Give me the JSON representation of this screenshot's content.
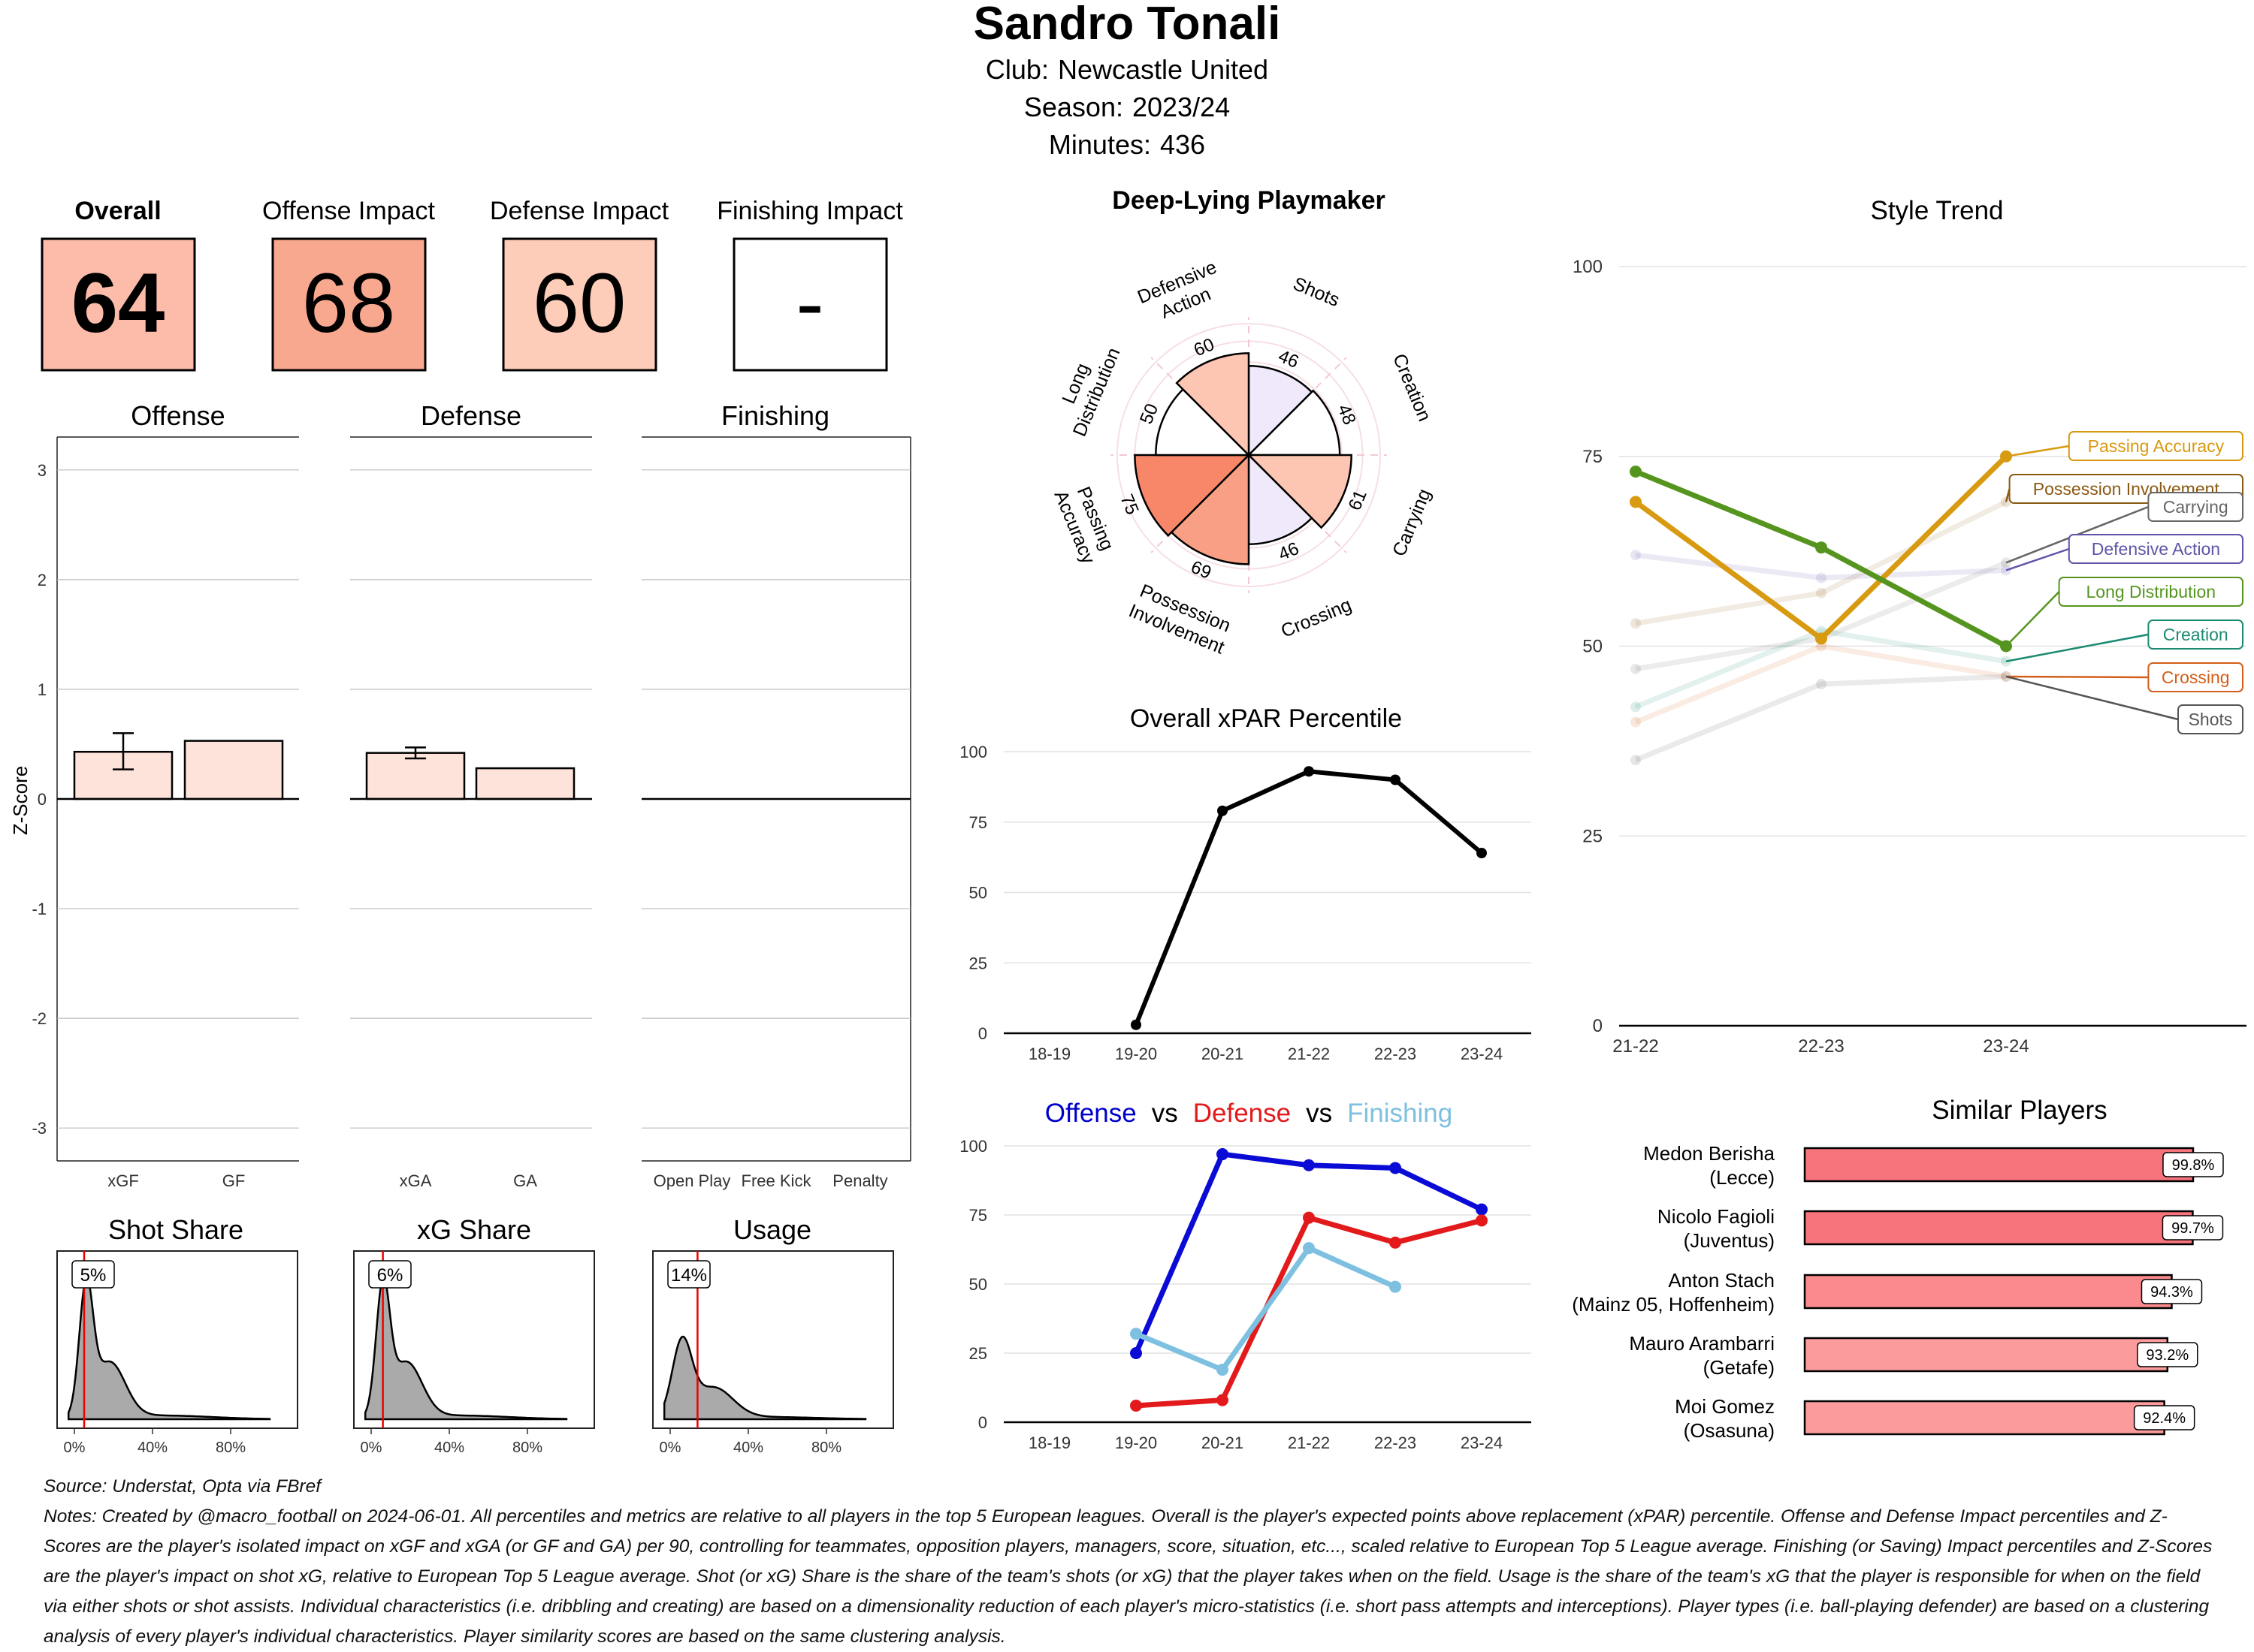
{
  "header": {
    "player_name": "Sandro Tonali",
    "club_label": "Club:",
    "club": "Newcastle United",
    "season_label": "Season:",
    "season": "2023/24",
    "minutes_label": "Minutes:",
    "minutes": "436"
  },
  "impact_boxes": [
    {
      "label": "Overall",
      "value": "64",
      "color": "#fcbca9"
    },
    {
      "label": "Offense Impact",
      "value": "68",
      "color": "#f9a890"
    },
    {
      "label": "Defense Impact",
      "value": "60",
      "color": "#fdcdb9"
    },
    {
      "label": "Finishing Impact",
      "value": "-",
      "color": "#ffffff"
    }
  ],
  "footer": {
    "source": "Source: Understat, Opta via FBref",
    "notes": "Notes: Created by @macro_football on 2024-06-01. All percentiles and metrics are relative to all players in the top 5 European leagues. Overall is the player's expected points above replacement (xPAR) percentile. Offense and Defense Impact percentiles and Z-Scores are the player's isolated impact on xGF and xGA (or GF and GA) per 90, controlling for teammates, opposition players, managers, score, situation, etc..., scaled relative to European Top 5 League average. Finishing (or Saving) Impact percentiles and Z-Scores are the player's impact on shot xG, relative to European Top 5 League average. Shot (or xG) Share is the share of the team's shots (or xG) that the player takes when on the field. Usage is the share of the team's xG that the player is responsible for when on the field via either shots or shot assists. Individual characteristics (i.e. dribbling and creating) are based on a dimensionality reduction of each player's micro-statistics (i.e. short pass attempts and interceptions). Player types (i.e. ball-playing defender) are based on a clustering analysis of every player's individual characteristics. Player similarity scores are based on the same clustering analysis."
  },
  "chart_data": [
    {
      "id": "zscore",
      "type": "bar",
      "ylabel": "Z-Score",
      "ylim": [
        -3.3,
        3.3
      ],
      "yticks": [
        -3,
        -2,
        -1,
        0,
        1,
        2,
        3
      ],
      "panels": [
        {
          "title": "Offense",
          "categories": [
            "xGF",
            "GF"
          ],
          "values": [
            0.43,
            0.53
          ],
          "error": [
            [
              0.27,
              0.6
            ],
            null
          ]
        },
        {
          "title": "Defense",
          "categories": [
            "xGA",
            "GA"
          ],
          "values": [
            0.42,
            0.28
          ],
          "error": [
            [
              0.37,
              0.47
            ],
            null
          ]
        },
        {
          "title": "Finishing",
          "categories": [
            "Open Play",
            "Free Kick",
            "Penalty"
          ],
          "values": [
            0,
            0,
            0
          ],
          "error": [
            null,
            null,
            null
          ]
        }
      ]
    },
    {
      "id": "distributions",
      "type": "area",
      "xticks": [
        "0%",
        "40%",
        "80%"
      ],
      "panels": [
        {
          "title": "Shot Share",
          "marker_label": "5%",
          "marker_value": 5
        },
        {
          "title": "xG Share",
          "marker_label": "6%",
          "marker_value": 6
        },
        {
          "title": "Usage",
          "marker_label": "14%",
          "marker_value": 14
        }
      ]
    },
    {
      "id": "radar",
      "type": "pie",
      "title": "Deep-Lying Playmaker",
      "categories": [
        "Shots",
        "Creation",
        "Carrying",
        "Crossing",
        "Possession Involvement",
        "Passing Accuracy",
        "Long Distribution",
        "Defensive Action"
      ],
      "values": [
        46,
        48,
        61,
        46,
        69,
        75,
        50,
        60
      ],
      "colors": [
        "#efe9fb",
        "#ffffff",
        "#fdc6b2",
        "#efe9fb",
        "#f99f85",
        "#f8876a",
        "#ffffff",
        "#fdc6b2"
      ],
      "ylim": [
        0,
        100
      ]
    },
    {
      "id": "xpar",
      "type": "line",
      "title": "Overall xPAR Percentile",
      "categories": [
        "18-19",
        "19-20",
        "20-21",
        "21-22",
        "22-23",
        "23-24"
      ],
      "series": [
        {
          "name": "xPAR",
          "values": [
            null,
            3,
            79,
            93,
            90,
            64
          ],
          "color": "#000000"
        }
      ],
      "ylim": [
        0,
        100
      ],
      "yticks": [
        0,
        25,
        50,
        75,
        100
      ]
    },
    {
      "id": "ovd",
      "type": "line",
      "title_parts": [
        {
          "text": "Offense",
          "color": "#0000cd"
        },
        {
          "text": "vs",
          "color": "#000000"
        },
        {
          "text": "Defense",
          "color": "#e31a1c"
        },
        {
          "text": "vs",
          "color": "#000000"
        },
        {
          "text": "Finishing",
          "color": "#7ec0e0"
        }
      ],
      "categories": [
        "18-19",
        "19-20",
        "20-21",
        "21-22",
        "22-23",
        "23-24"
      ],
      "series": [
        {
          "name": "Offense",
          "values": [
            null,
            25,
            97,
            93,
            92,
            77
          ],
          "color": "#0b0bd6"
        },
        {
          "name": "Defense",
          "values": [
            null,
            6,
            8,
            74,
            65,
            73
          ],
          "color": "#e31a1c"
        },
        {
          "name": "Finishing",
          "values": [
            null,
            32,
            19,
            63,
            49,
            null
          ],
          "color": "#7ec0e0"
        }
      ],
      "ylim": [
        0,
        100
      ],
      "yticks": [
        0,
        25,
        50,
        75,
        100
      ]
    },
    {
      "id": "style_trend",
      "type": "line",
      "title": "Style Trend",
      "categories": [
        "21-22",
        "22-23",
        "23-24"
      ],
      "ylim": [
        0,
        100
      ],
      "yticks": [
        0,
        25,
        50,
        75,
        100
      ],
      "series": [
        {
          "name": "Passing Accuracy",
          "values": [
            69,
            51,
            75
          ],
          "color": "#d89a10",
          "highlight": true
        },
        {
          "name": "Possession Involvement",
          "values": [
            53,
            57,
            69
          ],
          "color": "#8a5a12",
          "highlight": false
        },
        {
          "name": "Carrying",
          "values": [
            47,
            51,
            61
          ],
          "color": "#666666",
          "highlight": false
        },
        {
          "name": "Defensive Action",
          "values": [
            62,
            59,
            60
          ],
          "color": "#5e55a8",
          "highlight": false
        },
        {
          "name": "Long Distribution",
          "values": [
            73,
            63,
            50
          ],
          "color": "#55951f",
          "highlight": true
        },
        {
          "name": "Creation",
          "values": [
            42,
            52,
            48
          ],
          "color": "#1b8a72",
          "highlight": false
        },
        {
          "name": "Crossing",
          "values": [
            40,
            50,
            46
          ],
          "color": "#d35f1a",
          "highlight": false
        },
        {
          "name": "Shots",
          "values": [
            35,
            45,
            46
          ],
          "color": "#555555",
          "highlight": false
        }
      ]
    },
    {
      "id": "similar",
      "type": "bar",
      "title": "Similar Players",
      "players": [
        {
          "name": "Medon Berisha",
          "club": "(Lecce)",
          "value": 99.8,
          "label": "99.8%"
        },
        {
          "name": "Nicolo Fagioli",
          "club": "(Juventus)",
          "value": 99.7,
          "label": "99.7%"
        },
        {
          "name": "Anton Stach",
          "club": "(Mainz 05, Hoffenheim)",
          "value": 94.3,
          "label": "94.3%"
        },
        {
          "name": "Mauro Arambarri",
          "club": "(Getafe)",
          "value": 93.2,
          "label": "93.2%"
        },
        {
          "name": "Moi Gomez",
          "club": "(Osasuna)",
          "value": 92.4,
          "label": "92.4%"
        }
      ],
      "colors": [
        "#f8747c",
        "#f8747c",
        "#fa8a8e",
        "#fb9b9c",
        "#fb9b9c"
      ]
    }
  ]
}
